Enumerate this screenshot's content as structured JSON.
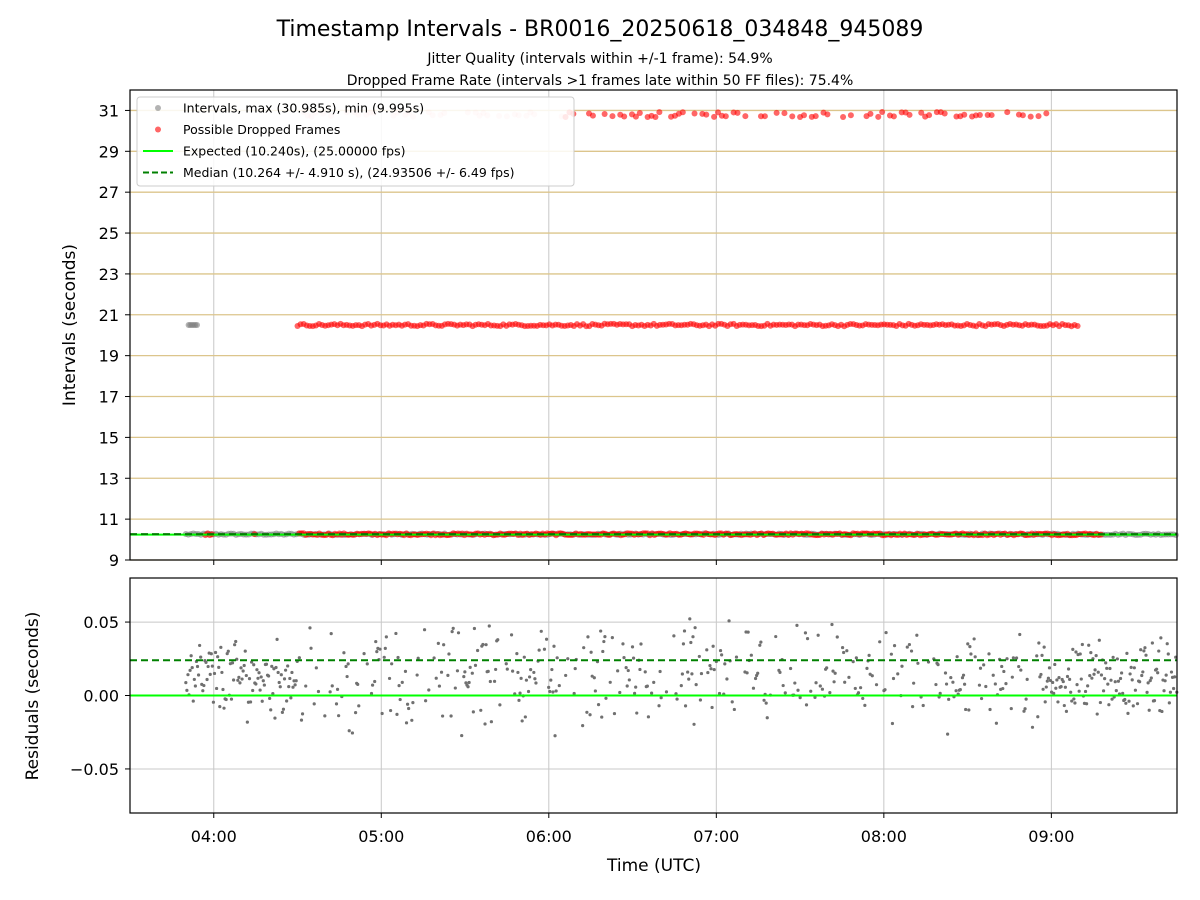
{
  "chart_data": [
    {
      "type": "scatter",
      "panel": "top",
      "title": "Timestamp Intervals - BR0016_20250618_034848_945089",
      "subtitle_lines": [
        "Jitter Quality (intervals within +/-1 frame): 54.9%",
        "Dropped Frame Rate (intervals >1 frames late within 50 FF files): 75.4%"
      ],
      "xlabel": "",
      "ylabel": "Intervals (seconds)",
      "ylim": [
        9,
        32
      ],
      "yticks": [
        9,
        11,
        13,
        15,
        17,
        19,
        21,
        23,
        25,
        27,
        29,
        31
      ],
      "ytick_labels": [
        "9",
        "11",
        "13",
        "15",
        "17",
        "19",
        "21",
        "23",
        "25",
        "27",
        "29",
        "31"
      ],
      "xlim": [
        "03:30",
        "09:45"
      ],
      "grid": true,
      "legend_placement": "top-left",
      "series": [
        {
          "name": "Intervals, max (30.985s), min (9.995s)",
          "color": "#808080",
          "marker": "circle",
          "bands": [
            {
              "y": 10.26,
              "x_start": "03:50",
              "x_end": "09:45"
            },
            {
              "y": 20.5,
              "x_start": "03:51",
              "x_end": "03:54"
            }
          ]
        },
        {
          "name": "Possible Dropped Frames",
          "color": "#ff0000",
          "marker": "circle",
          "bands": [
            {
              "y": 10.26,
              "x_start": "03:57",
              "x_end": "09:18"
            },
            {
              "y": 20.5,
              "x_start": "04:30",
              "x_end": "09:10"
            },
            {
              "y": 30.8,
              "x_start": "04:28",
              "x_end": "09:00"
            }
          ]
        },
        {
          "name": "Expected (10.240s), (25.00000 fps)",
          "color": "#00ff00",
          "style": "solid",
          "y": 10.24
        },
        {
          "name": "Median (10.264 +/- 4.910 s), (24.93506 +/- 6.49 fps)",
          "color": "#008000",
          "style": "dashed",
          "y": 10.264
        }
      ]
    },
    {
      "type": "scatter",
      "panel": "bottom",
      "xlabel": "Time (UTC)",
      "ylabel": "Residuals (seconds)",
      "ylim": [
        -0.08,
        0.08
      ],
      "yticks": [
        -0.05,
        0.0,
        0.05
      ],
      "ytick_labels": [
        "−0.05",
        "0.00",
        "0.05"
      ],
      "xlim": [
        "03:30",
        "09:45"
      ],
      "xticks": [
        "04:00",
        "05:00",
        "06:00",
        "07:00",
        "08:00",
        "09:00"
      ],
      "grid": true,
      "series": [
        {
          "name": "residuals",
          "color": "#707070",
          "x_start": "03:50",
          "x_end": "09:45",
          "center": 0.012,
          "spread": 0.03
        },
        {
          "name": "expected",
          "color": "#00ff00",
          "style": "solid",
          "y": 0.0
        },
        {
          "name": "median",
          "color": "#008000",
          "style": "dashed",
          "y": 0.024
        }
      ]
    }
  ]
}
